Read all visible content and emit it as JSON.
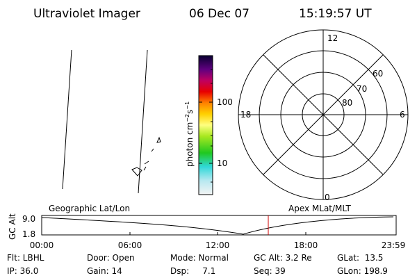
{
  "header": {
    "instrument": "Ultraviolet Imager",
    "date": "06 Dec 07",
    "time": "15:19:57 UT"
  },
  "colorbar": {
    "label": {
      "base": "photon cm",
      "exp1": "−2",
      "unit2": "s",
      "exp2": "−1"
    },
    "ticks": [
      "100",
      "10"
    ]
  },
  "polar": {
    "mlt_labels": [
      "12",
      "6",
      "0",
      "18"
    ],
    "lat_labels": [
      "60",
      "70",
      "80"
    ]
  },
  "timeline": {
    "left_title": "Geographic Lat/Lon",
    "right_title": "Apex MLat/MLT",
    "y_label": "GC Alt",
    "y_ticks": [
      "9.0",
      "1.8"
    ],
    "x_ticks": [
      "00:00",
      "06:00",
      "12:00",
      "18:00",
      "23:59"
    ]
  },
  "status": [
    [
      "Flt: LBHL",
      "Door: Open",
      "Mode: Normal",
      "GC Alt: 3.2 Re",
      "GLat:  13.5"
    ],
    [
      "IP: 36.0",
      "Gain: 14",
      "Dsp:     7.1",
      "Seq: 39",
      "GLon: 198.9"
    ]
  ]
}
